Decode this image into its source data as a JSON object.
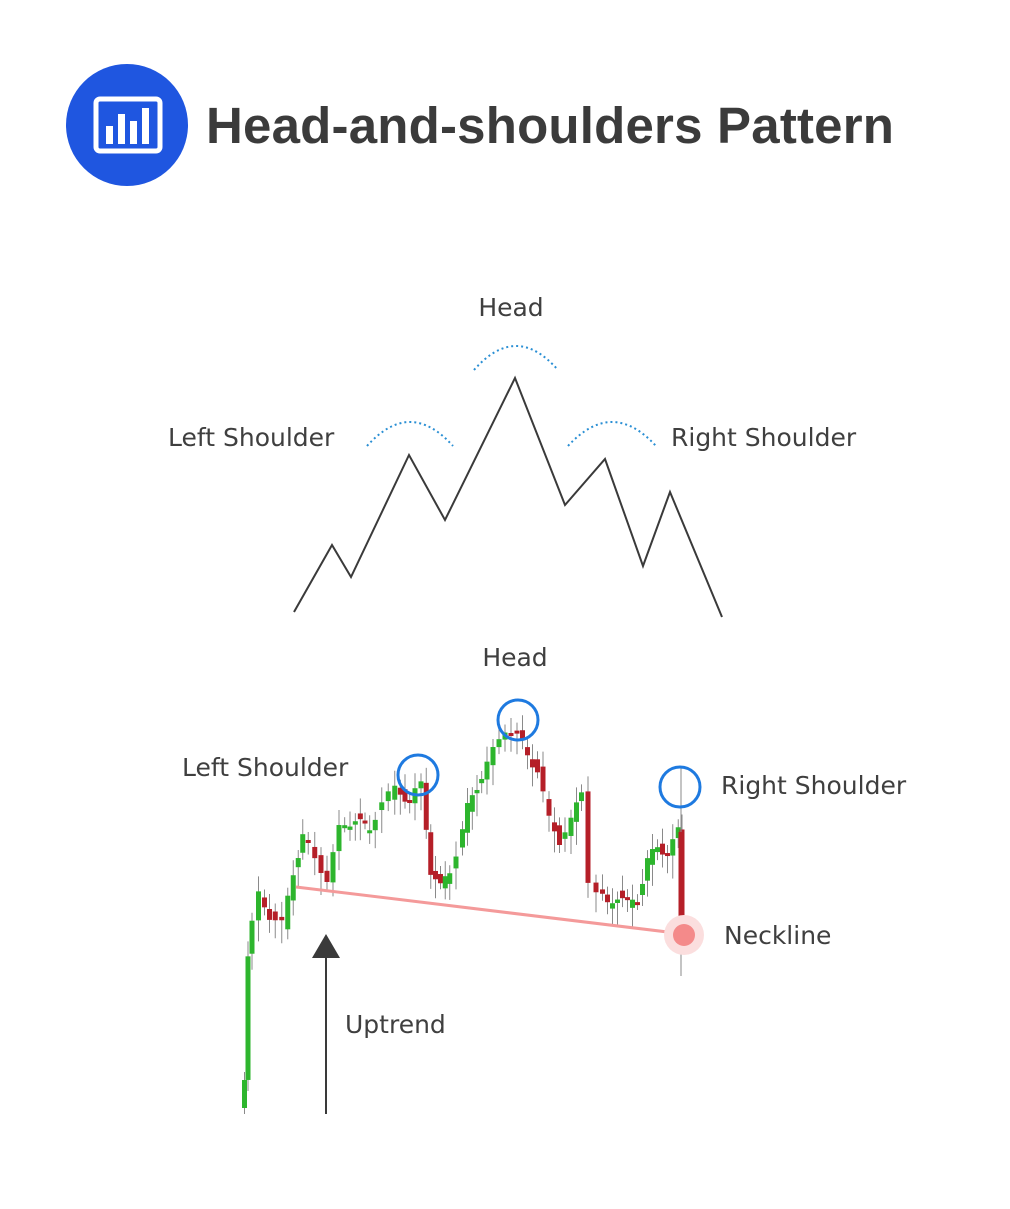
{
  "header": {
    "title": "Head-and-shoulders Pattern",
    "logo_icon": "bar-chart-icon",
    "logo_color": "#1f56e0"
  },
  "schematic": {
    "head_label": "Head",
    "left_shoulder_label": "Left Shoulder",
    "right_shoulder_label": "Right Shoulder",
    "line_color": "#3a3a3a",
    "arc_color": "#2a8fd4"
  },
  "candlestick": {
    "head_label": "Head",
    "left_shoulder_label": "Left Shoulder",
    "right_shoulder_label": "Right Shoulder",
    "neckline_label": "Neckline",
    "uptrend_label": "Uptrend",
    "up_color": "#2db52d",
    "down_color": "#b51f28",
    "neckline_color": "#f49a9a",
    "marker_color": "#1e7ae0"
  }
}
